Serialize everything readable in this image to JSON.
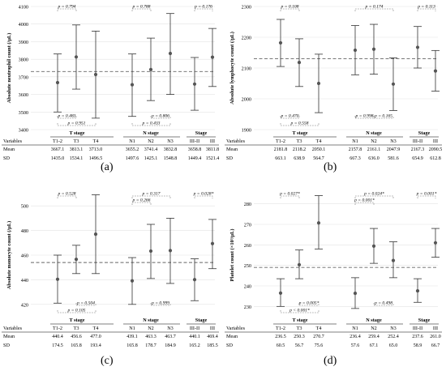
{
  "chart_data": [
    {
      "type": "error-bar",
      "panel_label": "(a)",
      "ylabel": "Absolute neutrophil count (/µL)",
      "ylim": [
        3400,
        4100
      ],
      "yticks": [
        3400,
        3500,
        3600,
        3700,
        3800,
        3900,
        4000,
        4100
      ],
      "reference_line": 3730,
      "groups": [
        "T stage",
        "N stage",
        "Stage"
      ],
      "categories": [
        "T1-2",
        "T3",
        "T4",
        "N1",
        "N2",
        "N3",
        "III-II",
        "III"
      ],
      "means": [
        3667.1,
        3813.1,
        3713.0,
        3655.2,
        3741.4,
        3832.8,
        3658.8,
        3811.8
      ],
      "lower": [
        3500,
        3630,
        3465,
        3475,
        3565,
        3600,
        3510,
        3645
      ],
      "upper": [
        3830,
        3995,
        3960,
        3830,
        3920,
        4060,
        3810,
        3975
      ],
      "brackets_top": [
        {
          "from": 0,
          "to": 1,
          "label": "p = 0.794"
        },
        {
          "from": 3,
          "to": 4,
          "label": "p = 0.788"
        },
        {
          "from": 6,
          "to": 7,
          "label": "p = 0.176"
        }
      ],
      "brackets_bottom": [
        {
          "from": 0,
          "to": 1,
          "label": "p = 0.483"
        },
        {
          "from": 0,
          "to": 2,
          "label": "p = 0.951"
        },
        {
          "from": 4,
          "to": 5,
          "label": "p = 0.806"
        },
        {
          "from": 3,
          "to": 5,
          "label": "p = 0.433"
        }
      ],
      "table": {
        "header": "Variables",
        "rows": [
          {
            "label": "Mean",
            "values": [
              "3667.1",
              "3813.1",
              "3713.0",
              "3655.2",
              "3741.4",
              "3832.8",
              "3658.8",
              "3811.8"
            ]
          },
          {
            "label": "SD",
            "values": [
              "1435.0",
              "1534.1",
              "1496.5",
              "1497.6",
              "1425.1",
              "1548.8",
              "1449.4",
              "1521.4"
            ]
          }
        ]
      }
    },
    {
      "type": "error-bar",
      "panel_label": "(b)",
      "ylabel": "Absolute lymphocyte count (/µL)",
      "ylim": [
        1900,
        2300
      ],
      "yticks": [
        1900,
        2000,
        2100,
        2200,
        2300
      ],
      "reference_line": 2130,
      "groups": [
        "T stage",
        "N stage",
        "Stage"
      ],
      "categories": [
        "T1-2",
        "T3",
        "T4",
        "N1",
        "N2",
        "N3",
        "III-II",
        "III"
      ],
      "means": [
        2181.8,
        2118.2,
        2050.1,
        2157.8,
        2161.1,
        2047.9,
        2167.3,
        2090.5
      ],
      "lower": [
        2105,
        2040,
        1955,
        2078,
        2080,
        1962,
        2100,
        2025
      ],
      "upper": [
        2258,
        2195,
        2145,
        2238,
        2242,
        2133,
        2235,
        2157
      ],
      "brackets_top": [
        {
          "from": 0,
          "to": 1,
          "label": "p = 0.108"
        },
        {
          "from": 3,
          "to": 5,
          "label": "p = 0.174"
        },
        {
          "from": 6,
          "to": 7,
          "label": "p = 0.113"
        }
      ],
      "brackets_bottom": [
        {
          "from": 0,
          "to": 1,
          "label": "p = 0.470"
        },
        {
          "from": 0,
          "to": 2,
          "label": "p = 0.558"
        },
        {
          "from": 3,
          "to": 4,
          "label": "p = 0.998"
        },
        {
          "from": 4,
          "to": 5,
          "label": "p = 0.165"
        }
      ],
      "table": {
        "header": "Variables",
        "rows": [
          {
            "label": "Mean",
            "values": [
              "2181.8",
              "2118.2",
              "2050.1",
              "2157.8",
              "2161.1",
              "2047.9",
              "2167.3",
              "2090.5"
            ]
          },
          {
            "label": "SD",
            "values": [
              "663.1",
              "638.9",
              "564.7",
              "667.3",
              "636.0",
              "581.6",
              "654.9",
              "612.8"
            ]
          }
        ]
      }
    },
    {
      "type": "error-bar",
      "panel_label": "(c)",
      "ylabel": "Absolute monocyte count (/µL)",
      "ylim": [
        410,
        510
      ],
      "yticks": [
        420,
        440,
        460,
        480,
        500
      ],
      "reference_line": 454,
      "groups": [
        "T stage",
        "N stage",
        "Stage"
      ],
      "categories": [
        "T1-2",
        "T3",
        "T4",
        "N1",
        "N2",
        "N3",
        "III-II",
        "III"
      ],
      "means": [
        440.4,
        456.6,
        477.0,
        439.1,
        463.3,
        463.7,
        440.1,
        469.4
      ],
      "lower": [
        421,
        445,
        445,
        420,
        441,
        437,
        423,
        449
      ],
      "upper": [
        460,
        468,
        509,
        458,
        485,
        490,
        457,
        489
      ],
      "brackets_top": [
        {
          "from": 0,
          "to": 1,
          "label": "p = 0.528"
        },
        {
          "from": 3,
          "to": 4,
          "label": "p = 0.266"
        },
        {
          "from": 3,
          "to": 5,
          "label": "p = 0.317"
        },
        {
          "from": 6,
          "to": 7,
          "label": "p = 0.028*"
        }
      ],
      "brackets_bottom": [
        {
          "from": 1,
          "to": 2,
          "label": "p = 0.504"
        },
        {
          "from": 0,
          "to": 2,
          "label": "p = 0.105"
        },
        {
          "from": 4,
          "to": 5,
          "label": "p = 0.999"
        }
      ],
      "table": {
        "header": "Variables",
        "rows": [
          {
            "label": "Mean",
            "values": [
              "440.4",
              "456.6",
              "477.0",
              "439.1",
              "463.3",
              "463.7",
              "440.1",
              "469.4"
            ]
          },
          {
            "label": "SD",
            "values": [
              "174.5",
              "165.8",
              "193.4",
              "165.8",
              "178.7",
              "184.9",
              "165.2",
              "185.5"
            ]
          }
        ]
      }
    },
    {
      "type": "error-bar",
      "panel_label": "(d)",
      "ylabel": "Platelet count (×10³/µL)",
      "ylim": [
        225,
        285
      ],
      "yticks": [
        230,
        240,
        250,
        260,
        270,
        280
      ],
      "reference_line": 249,
      "groups": [
        "T stage",
        "N stage",
        "Stage"
      ],
      "categories": [
        "T1-2",
        "T3",
        "T4",
        "N1",
        "N2",
        "N3",
        "III-II",
        "III"
      ],
      "means": [
        236.5,
        250.3,
        270.7,
        236.4,
        259.4,
        252.4,
        237.6,
        261.0
      ],
      "lower": [
        230,
        243.5,
        258,
        229,
        251,
        244,
        232,
        254
      ],
      "upper": [
        243.5,
        257.5,
        284,
        244,
        268,
        261.5,
        243.5,
        268
      ],
      "brackets_top": [
        {
          "from": 0,
          "to": 1,
          "label": "p = 0.027*"
        },
        {
          "from": 3,
          "to": 5,
          "label": "p = 0.024*"
        },
        {
          "from": 3,
          "to": 4,
          "label": "p = 0.001*"
        },
        {
          "from": 6,
          "to": 7,
          "label": "p = 0.001*"
        }
      ],
      "brackets_bottom": [
        {
          "from": 1,
          "to": 2,
          "label": "p = 0.005*"
        },
        {
          "from": 0,
          "to": 2,
          "label": "p < 0.001*"
        },
        {
          "from": 4,
          "to": 5,
          "label": "p = 0.498"
        }
      ],
      "table": {
        "header": "Variables",
        "rows": [
          {
            "label": "Mean",
            "values": [
              "236.5",
              "250.3",
              "270.7",
              "236.4",
              "259.4",
              "252.4",
              "237.6",
              "261.0"
            ]
          },
          {
            "label": "SD",
            "values": [
              "60.5",
              "56.7",
              "75.6",
              "57.6",
              "67.1",
              "65.0",
              "58.9",
              "66.7"
            ]
          }
        ]
      }
    }
  ]
}
